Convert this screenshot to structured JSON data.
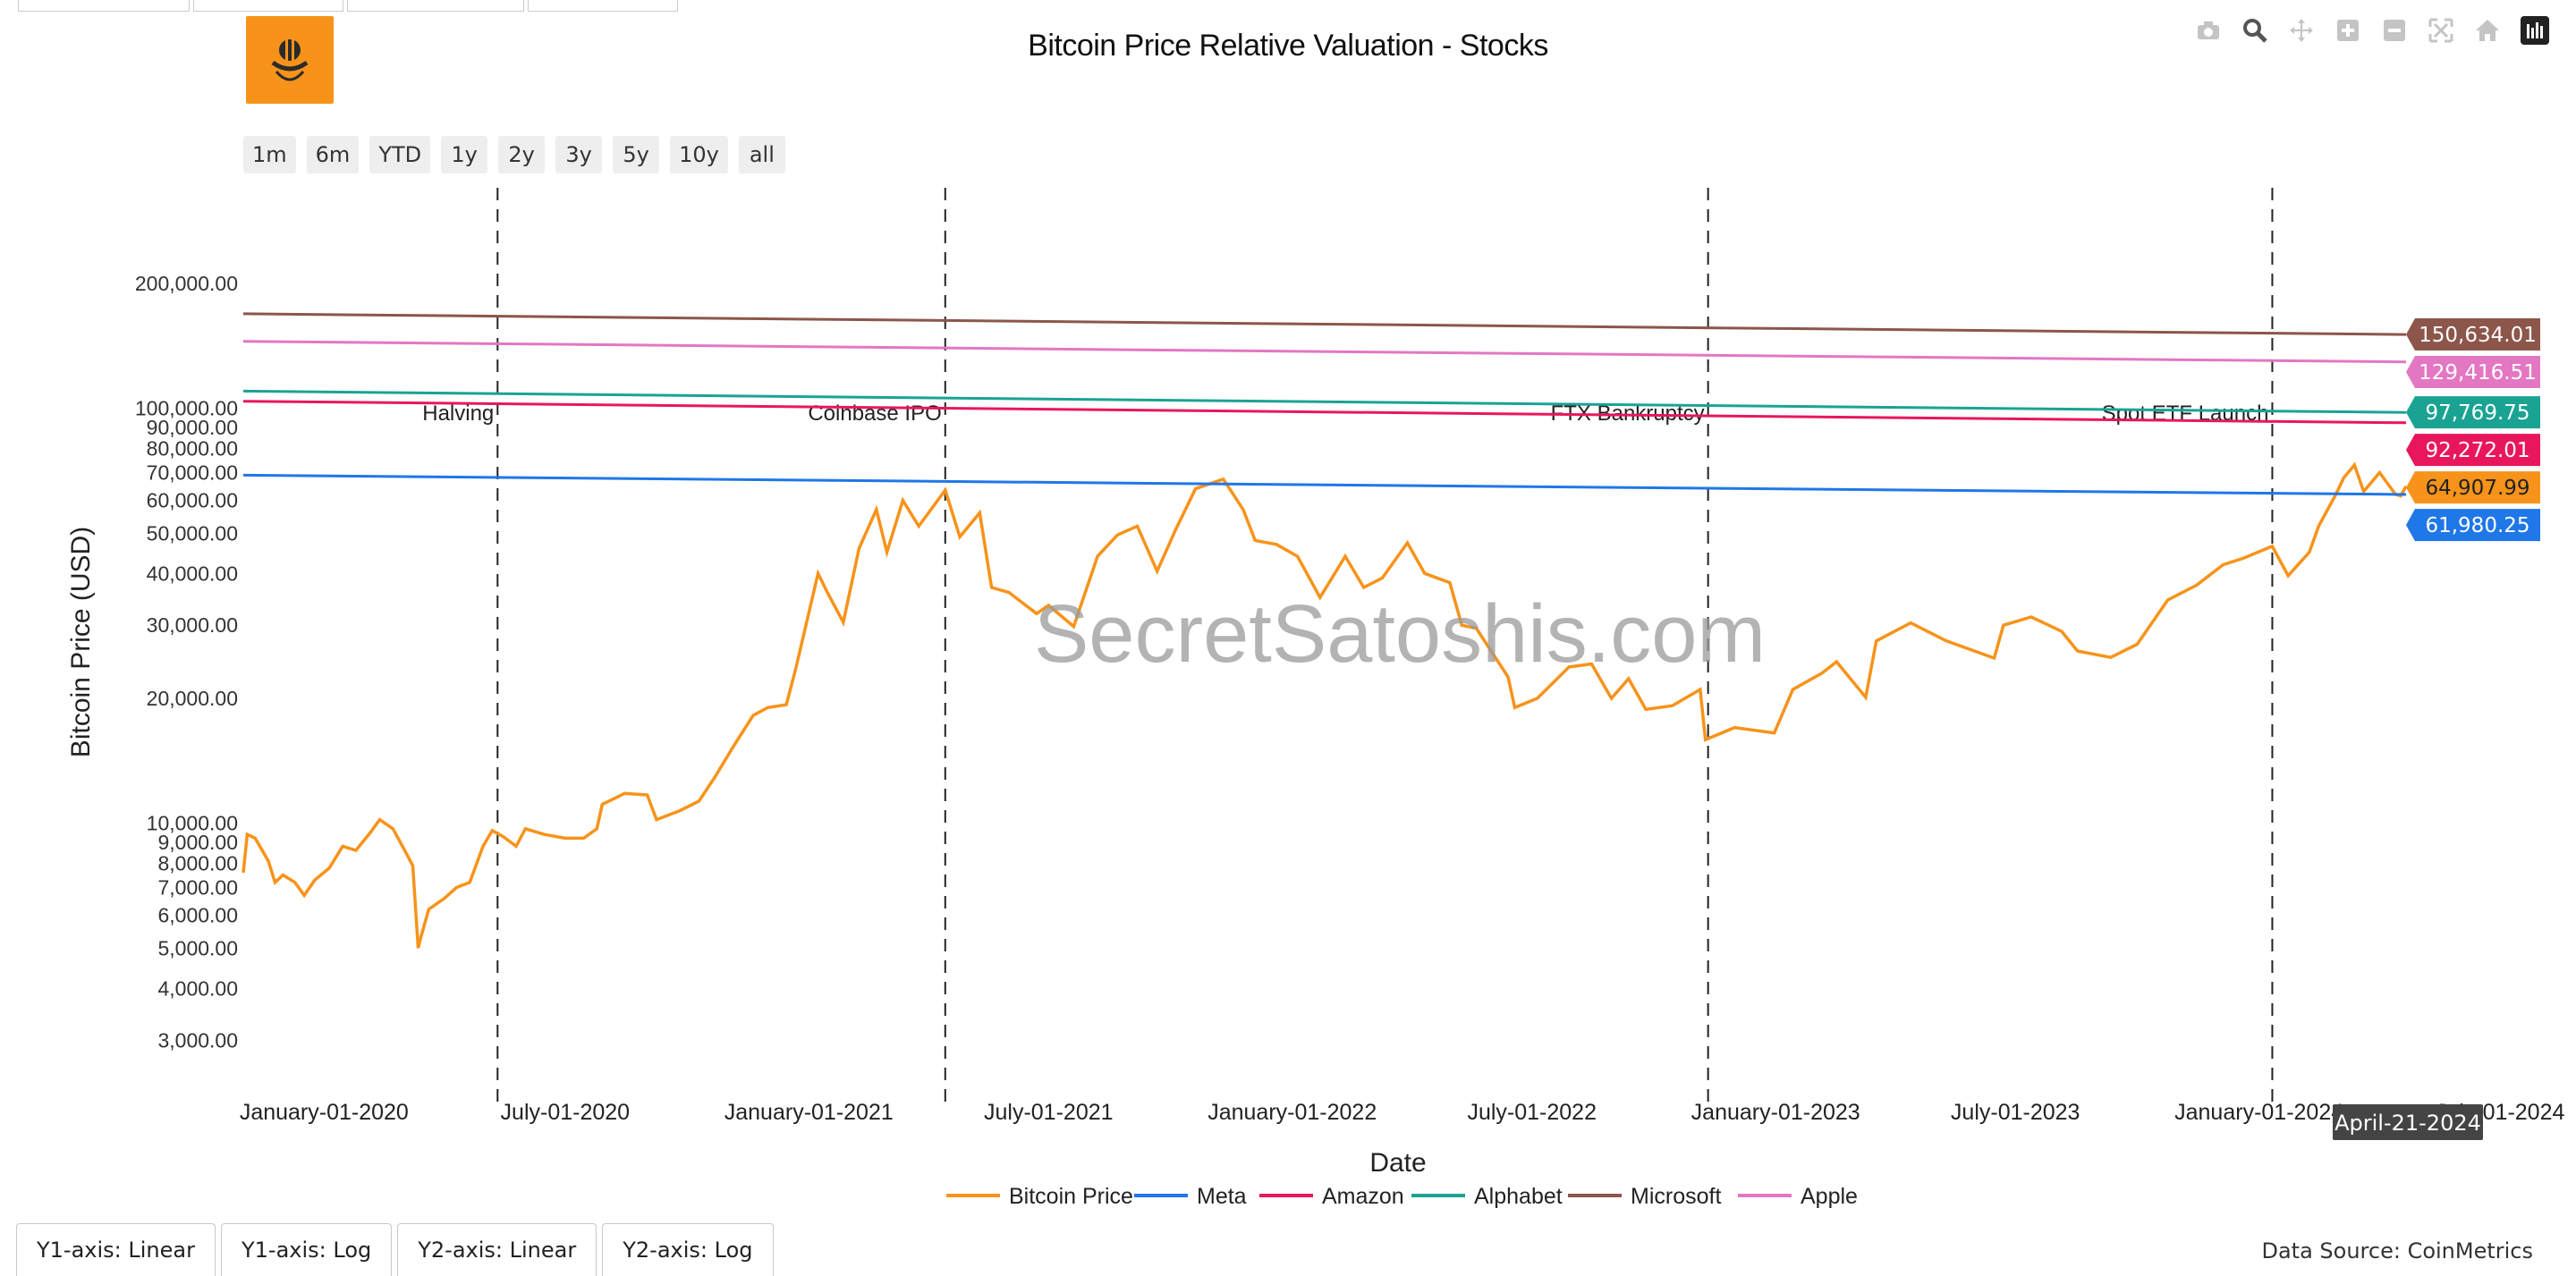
{
  "title": "Bitcoin Price Relative Valuation - Stocks",
  "range_buttons": [
    "1m",
    "6m",
    "YTD",
    "1y",
    "2y",
    "3y",
    "5y",
    "10y",
    "all"
  ],
  "modebar_icons": [
    "camera-icon",
    "zoom-icon",
    "pan-icon",
    "zoom-in-icon",
    "zoom-out-icon",
    "autoscale-icon",
    "reset-axes-icon",
    "plotly-logo-icon"
  ],
  "axis_buttons": [
    "Y1-axis: Linear",
    "Y1-axis: Log",
    "Y2-axis: Linear",
    "Y2-axis: Log"
  ],
  "source": "Data Source: CoinMetrics",
  "hover_label": "April-21-2024",
  "watermark": "SecretSatoshis.com",
  "colors": {
    "bitcoin": "#f7931a",
    "meta": "#1f77e8",
    "amazon": "#e8175d",
    "alphabet": "#1aa392",
    "microsoft": "#8c564b",
    "apple": "#e377c2"
  },
  "chart_data": {
    "type": "line",
    "title": "Bitcoin Price Relative Valuation - Stocks",
    "xlabel": "Date",
    "ylabel": "Bitcoin Price (USD)",
    "yscale": "log",
    "xlim": [
      "2019-11-01",
      "2024-04-21"
    ],
    "ylim": [
      2500,
      340000
    ],
    "grid": false,
    "legend_position": "bottom",
    "x_ticks": [
      "January-01-2020",
      "July-01-2020",
      "January-01-2021",
      "July-01-2021",
      "January-01-2022",
      "July-01-2022",
      "January-01-2023",
      "July-01-2023",
      "January-01-2024",
      "July-01-2024"
    ],
    "x_tick_dates": [
      "2020-01-01",
      "2020-07-01",
      "2021-01-01",
      "2021-07-01",
      "2022-01-01",
      "2022-07-01",
      "2023-01-01",
      "2023-07-01",
      "2024-01-01",
      "2024-07-01"
    ],
    "y_ticks": [
      {
        "v": 3000,
        "label": "3,000.00"
      },
      {
        "v": 4000,
        "label": "4,000.00"
      },
      {
        "v": 5000,
        "label": "5,000.00"
      },
      {
        "v": 6000,
        "label": "6,000.00"
      },
      {
        "v": 7000,
        "label": "7,000.00"
      },
      {
        "v": 8000,
        "label": "8,000.00"
      },
      {
        "v": 9000,
        "label": "9,000.00"
      },
      {
        "v": 10000,
        "label": "10,000.00"
      },
      {
        "v": 20000,
        "label": "20,000.00"
      },
      {
        "v": 30000,
        "label": "30,000.00"
      },
      {
        "v": 40000,
        "label": "40,000.00"
      },
      {
        "v": 50000,
        "label": "50,000.00"
      },
      {
        "v": 60000,
        "label": "60,000.00"
      },
      {
        "v": 70000,
        "label": "70,000.00"
      },
      {
        "v": 80000,
        "label": "80,000.00"
      },
      {
        "v": 90000,
        "label": "90,000.00"
      },
      {
        "v": 100000,
        "label": "100,000.00"
      },
      {
        "v": 200000,
        "label": "200,000.00"
      }
    ],
    "events": [
      {
        "date": "2020-05-11",
        "label": "Halving"
      },
      {
        "date": "2021-04-14",
        "label": "Coinbase IPO"
      },
      {
        "date": "2022-11-11",
        "label": "FTX Bankruptcy"
      },
      {
        "date": "2024-01-11",
        "label": "Spot ETF Launch"
      }
    ],
    "series": [
      {
        "name": "Bitcoin Price",
        "key": "bitcoin",
        "end_label": "64,907.99",
        "points": [
          [
            "2019-11-01",
            7600
          ],
          [
            "2019-11-04",
            9400
          ],
          [
            "2019-11-10",
            9200
          ],
          [
            "2019-11-20",
            8100
          ],
          [
            "2019-11-25",
            7200
          ],
          [
            "2019-12-01",
            7500
          ],
          [
            "2019-12-10",
            7200
          ],
          [
            "2019-12-17",
            6700
          ],
          [
            "2019-12-25",
            7300
          ],
          [
            "2020-01-05",
            7800
          ],
          [
            "2020-01-15",
            8800
          ],
          [
            "2020-01-25",
            8600
          ],
          [
            "2020-02-05",
            9500
          ],
          [
            "2020-02-12",
            10200
          ],
          [
            "2020-02-22",
            9700
          ],
          [
            "2020-03-01",
            8700
          ],
          [
            "2020-03-08",
            7900
          ],
          [
            "2020-03-12",
            5000
          ],
          [
            "2020-03-14",
            5300
          ],
          [
            "2020-03-20",
            6200
          ],
          [
            "2020-04-01",
            6600
          ],
          [
            "2020-04-10",
            7000
          ],
          [
            "2020-04-20",
            7200
          ],
          [
            "2020-04-30",
            8800
          ],
          [
            "2020-05-07",
            9600
          ],
          [
            "2020-05-15",
            9300
          ],
          [
            "2020-05-25",
            8800
          ],
          [
            "2020-06-01",
            9700
          ],
          [
            "2020-06-15",
            9400
          ],
          [
            "2020-07-01",
            9200
          ],
          [
            "2020-07-15",
            9200
          ],
          [
            "2020-07-25",
            9700
          ],
          [
            "2020-07-29",
            11100
          ],
          [
            "2020-08-15",
            11800
          ],
          [
            "2020-09-01",
            11700
          ],
          [
            "2020-09-08",
            10200
          ],
          [
            "2020-09-25",
            10700
          ],
          [
            "2020-10-10",
            11300
          ],
          [
            "2020-10-22",
            12900
          ],
          [
            "2020-11-05",
            15300
          ],
          [
            "2020-11-20",
            18200
          ],
          [
            "2020-12-01",
            19000
          ],
          [
            "2020-12-15",
            19300
          ],
          [
            "2020-12-22",
            23500
          ],
          [
            "2021-01-08",
            40000
          ],
          [
            "2021-01-15",
            36000
          ],
          [
            "2021-01-27",
            30500
          ],
          [
            "2021-02-08",
            46000
          ],
          [
            "2021-02-21",
            57000
          ],
          [
            "2021-03-01",
            45000
          ],
          [
            "2021-03-13",
            60000
          ],
          [
            "2021-03-25",
            52000
          ],
          [
            "2021-04-14",
            63500
          ],
          [
            "2021-04-25",
            49000
          ],
          [
            "2021-05-10",
            56000
          ],
          [
            "2021-05-19",
            37000
          ],
          [
            "2021-06-01",
            36000
          ],
          [
            "2021-06-22",
            32000
          ],
          [
            "2021-07-01",
            33500
          ],
          [
            "2021-07-20",
            29800
          ],
          [
            "2021-08-07",
            44000
          ],
          [
            "2021-08-22",
            49500
          ],
          [
            "2021-09-06",
            52000
          ],
          [
            "2021-09-21",
            40500
          ],
          [
            "2021-10-05",
            51000
          ],
          [
            "2021-10-20",
            64000
          ],
          [
            "2021-11-10",
            67500
          ],
          [
            "2021-11-25",
            57000
          ],
          [
            "2021-12-04",
            48000
          ],
          [
            "2021-12-20",
            47000
          ],
          [
            "2022-01-05",
            44000
          ],
          [
            "2022-01-22",
            35000
          ],
          [
            "2022-02-10",
            44000
          ],
          [
            "2022-02-24",
            37000
          ],
          [
            "2022-03-10",
            39000
          ],
          [
            "2022-03-29",
            47400
          ],
          [
            "2022-04-11",
            40000
          ],
          [
            "2022-04-30",
            38000
          ],
          [
            "2022-05-09",
            30000
          ],
          [
            "2022-05-20",
            29500
          ],
          [
            "2022-06-13",
            22500
          ],
          [
            "2022-06-18",
            19000
          ],
          [
            "2022-07-05",
            20000
          ],
          [
            "2022-07-29",
            23800
          ],
          [
            "2022-08-15",
            24200
          ],
          [
            "2022-08-30",
            20000
          ],
          [
            "2022-09-12",
            22300
          ],
          [
            "2022-09-25",
            18800
          ],
          [
            "2022-10-15",
            19200
          ],
          [
            "2022-11-05",
            21000
          ],
          [
            "2022-11-09",
            15900
          ],
          [
            "2022-12-01",
            17000
          ],
          [
            "2022-12-31",
            16500
          ],
          [
            "2023-01-14",
            21000
          ],
          [
            "2023-02-05",
            23000
          ],
          [
            "2023-02-16",
            24500
          ],
          [
            "2023-03-10",
            20100
          ],
          [
            "2023-03-18",
            27500
          ],
          [
            "2023-04-13",
            30400
          ],
          [
            "2023-05-10",
            27500
          ],
          [
            "2023-06-15",
            25000
          ],
          [
            "2023-06-22",
            30000
          ],
          [
            "2023-07-13",
            31400
          ],
          [
            "2023-08-05",
            29000
          ],
          [
            "2023-08-17",
            26000
          ],
          [
            "2023-09-11",
            25100
          ],
          [
            "2023-10-01",
            27000
          ],
          [
            "2023-10-24",
            34500
          ],
          [
            "2023-11-15",
            37500
          ],
          [
            "2023-12-05",
            42000
          ],
          [
            "2023-12-20",
            43500
          ],
          [
            "2024-01-11",
            46500
          ],
          [
            "2024-01-23",
            39500
          ],
          [
            "2024-02-08",
            45000
          ],
          [
            "2024-02-15",
            52000
          ],
          [
            "2024-02-28",
            62000
          ],
          [
            "2024-03-05",
            68000
          ],
          [
            "2024-03-13",
            73000
          ],
          [
            "2024-03-20",
            63000
          ],
          [
            "2024-04-01",
            70000
          ],
          [
            "2024-04-13",
            62000
          ],
          [
            "2024-04-17",
            61500
          ],
          [
            "2024-04-21",
            64907.99
          ]
        ]
      },
      {
        "name": "Meta",
        "key": "meta",
        "end_label": "61,980.25",
        "start": 69000,
        "end": 61980.25
      },
      {
        "name": "Amazon",
        "key": "amazon",
        "end_label": "92,272.01",
        "start": 104000,
        "end": 92272.01
      },
      {
        "name": "Alphabet",
        "key": "alphabet",
        "end_label": "97,769.75",
        "start": 110000,
        "end": 97769.75
      },
      {
        "name": "Microsoft",
        "key": "microsoft",
        "end_label": "150,634.01",
        "start": 169000,
        "end": 150634.01
      },
      {
        "name": "Apple",
        "key": "apple",
        "end_label": "129,416.51",
        "start": 145000,
        "end": 129416.51
      }
    ]
  }
}
